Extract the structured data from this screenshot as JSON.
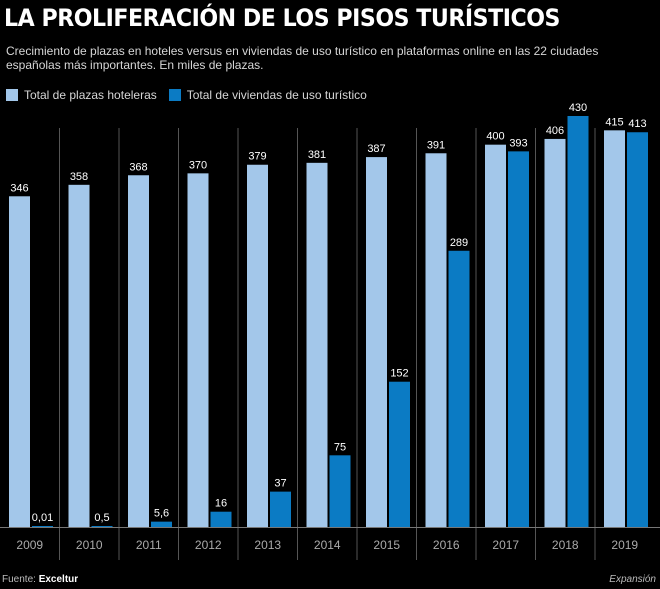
{
  "chart_data": {
    "type": "bar",
    "title": "LA PROLIFERACIÓN DE LOS PISOS TURÍSTICOS",
    "subtitle": "Crecimiento de plazas en hoteles versus en viviendas de uso turístico en plataformas online en las 22 ciudades españolas más importantes. En miles de plazas.",
    "categories": [
      "2009",
      "2010",
      "2011",
      "2012",
      "2013",
      "2014",
      "2015",
      "2016",
      "2017",
      "2018",
      "2019"
    ],
    "series": [
      {
        "name": "Total de plazas hoteleras",
        "color": "#a3c7ea",
        "values": [
          346,
          358,
          368,
          370,
          379,
          381,
          387,
          391,
          400,
          406,
          415
        ],
        "labels": [
          "346",
          "358",
          "368",
          "370",
          "379",
          "381",
          "387",
          "391",
          "400",
          "406",
          "415"
        ]
      },
      {
        "name": "Total de viviendas de uso turístico",
        "color": "#0b7bc4",
        "values": [
          0.01,
          0.5,
          5.6,
          16,
          37,
          75,
          152,
          289,
          393,
          430,
          413
        ],
        "labels": [
          "0,01",
          "0,5",
          "5,6",
          "16",
          "37",
          "75",
          "152",
          "289",
          "393",
          "430",
          "413"
        ]
      }
    ],
    "ylim": [
      0,
      430
    ],
    "grid": false,
    "legend_position": "top-left"
  },
  "footer": {
    "source_label": "Fuente:",
    "source_name": "Exceltur",
    "credit": "Expansión"
  }
}
